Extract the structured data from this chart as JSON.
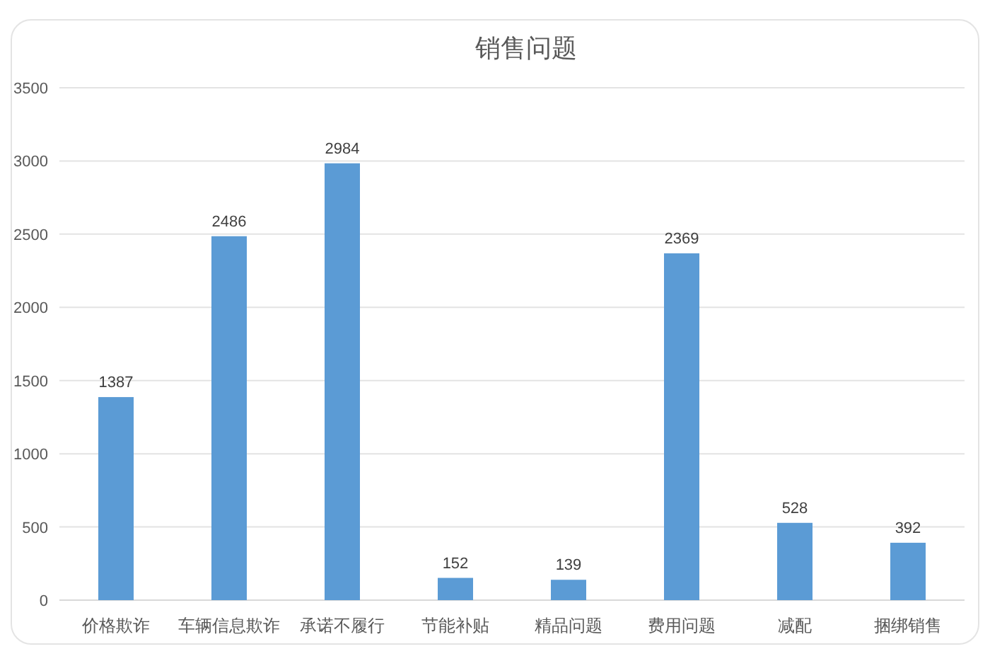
{
  "chart_data": {
    "type": "bar",
    "title": "销售问题",
    "categories": [
      "价格欺诈",
      "车辆信息欺诈",
      "承诺不履行",
      "节能补贴",
      "精品问题",
      "费用问题",
      "减配",
      "捆绑销售"
    ],
    "values": [
      1387,
      2486,
      2984,
      152,
      139,
      2369,
      528,
      392
    ],
    "color": "#5b9bd5",
    "ylim": [
      0,
      3500
    ],
    "yticks": [
      0,
      500,
      1000,
      1500,
      2000,
      2500,
      3000,
      3500
    ],
    "grid": "y",
    "data_labels": true
  }
}
